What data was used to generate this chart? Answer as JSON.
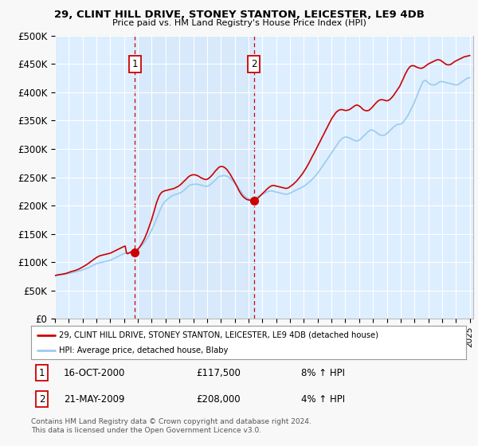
{
  "title": "29, CLINT HILL DRIVE, STONEY STANTON, LEICESTER, LE9 4DB",
  "subtitle": "Price paid vs. HM Land Registry's House Price Index (HPI)",
  "ylim": [
    0,
    500000
  ],
  "xlim_start": 1995.0,
  "xlim_end": 2025.25,
  "yticks": [
    0,
    50000,
    100000,
    150000,
    200000,
    250000,
    300000,
    350000,
    400000,
    450000,
    500000
  ],
  "ytick_labels": [
    "£0",
    "£50K",
    "£100K",
    "£150K",
    "£200K",
    "£250K",
    "£300K",
    "£350K",
    "£400K",
    "£450K",
    "£500K"
  ],
  "background_color": "#f8f8f8",
  "plot_bg_color": "#ddeeff",
  "grid_color": "#ffffff",
  "transaction1_year": 2000.79,
  "transaction1_price": 117500,
  "transaction2_year": 2009.38,
  "transaction2_price": 208000,
  "legend_line1": "29, CLINT HILL DRIVE, STONEY STANTON, LEICESTER, LE9 4DB (detached house)",
  "legend_line2": "HPI: Average price, detached house, Blaby",
  "footer_line1": "Contains HM Land Registry data © Crown copyright and database right 2024.",
  "footer_line2": "This data is licensed under the Open Government Licence v3.0.",
  "note1_date": "16-OCT-2000",
  "note1_price": "£117,500",
  "note1_hpi": "8% ↑ HPI",
  "note2_date": "21-MAY-2009",
  "note2_price": "£208,000",
  "note2_hpi": "4% ↑ HPI",
  "line_color_red": "#cc0000",
  "line_color_blue": "#99ccee",
  "marker_color_red": "#cc0000",
  "vline_color": "#cc0000",
  "hpi_years": [
    1995.0,
    1995.08,
    1995.17,
    1995.25,
    1995.33,
    1995.42,
    1995.5,
    1995.58,
    1995.67,
    1995.75,
    1995.83,
    1995.92,
    1996.0,
    1996.08,
    1996.17,
    1996.25,
    1996.33,
    1996.42,
    1996.5,
    1996.58,
    1996.67,
    1996.75,
    1996.83,
    1996.92,
    1997.0,
    1997.08,
    1997.17,
    1997.25,
    1997.33,
    1997.42,
    1997.5,
    1997.58,
    1997.67,
    1997.75,
    1997.83,
    1997.92,
    1998.0,
    1998.08,
    1998.17,
    1998.25,
    1998.33,
    1998.42,
    1998.5,
    1998.58,
    1998.67,
    1998.75,
    1998.83,
    1998.92,
    1999.0,
    1999.08,
    1999.17,
    1999.25,
    1999.33,
    1999.42,
    1999.5,
    1999.58,
    1999.67,
    1999.75,
    1999.83,
    1999.92,
    2000.0,
    2000.08,
    2000.17,
    2000.25,
    2000.33,
    2000.42,
    2000.5,
    2000.58,
    2000.67,
    2000.75,
    2000.83,
    2000.92,
    2001.0,
    2001.08,
    2001.17,
    2001.25,
    2001.33,
    2001.42,
    2001.5,
    2001.58,
    2001.67,
    2001.75,
    2001.83,
    2001.92,
    2002.0,
    2002.08,
    2002.17,
    2002.25,
    2002.33,
    2002.42,
    2002.5,
    2002.58,
    2002.67,
    2002.75,
    2002.83,
    2002.92,
    2003.0,
    2003.08,
    2003.17,
    2003.25,
    2003.33,
    2003.42,
    2003.5,
    2003.58,
    2003.67,
    2003.75,
    2003.83,
    2003.92,
    2004.0,
    2004.08,
    2004.17,
    2004.25,
    2004.33,
    2004.42,
    2004.5,
    2004.58,
    2004.67,
    2004.75,
    2004.83,
    2004.92,
    2005.0,
    2005.08,
    2005.17,
    2005.25,
    2005.33,
    2005.42,
    2005.5,
    2005.58,
    2005.67,
    2005.75,
    2005.83,
    2005.92,
    2006.0,
    2006.08,
    2006.17,
    2006.25,
    2006.33,
    2006.42,
    2006.5,
    2006.58,
    2006.67,
    2006.75,
    2006.83,
    2006.92,
    2007.0,
    2007.08,
    2007.17,
    2007.25,
    2007.33,
    2007.42,
    2007.5,
    2007.58,
    2007.67,
    2007.75,
    2007.83,
    2007.92,
    2008.0,
    2008.08,
    2008.17,
    2008.25,
    2008.33,
    2008.42,
    2008.5,
    2008.58,
    2008.67,
    2008.75,
    2008.83,
    2008.92,
    2009.0,
    2009.08,
    2009.17,
    2009.25,
    2009.33,
    2009.42,
    2009.5,
    2009.58,
    2009.67,
    2009.75,
    2009.83,
    2009.92,
    2010.0,
    2010.08,
    2010.17,
    2010.25,
    2010.33,
    2010.42,
    2010.5,
    2010.58,
    2010.67,
    2010.75,
    2010.83,
    2010.92,
    2011.0,
    2011.08,
    2011.17,
    2011.25,
    2011.33,
    2011.42,
    2011.5,
    2011.58,
    2011.67,
    2011.75,
    2011.83,
    2011.92,
    2012.0,
    2012.08,
    2012.17,
    2012.25,
    2012.33,
    2012.42,
    2012.5,
    2012.58,
    2012.67,
    2012.75,
    2012.83,
    2012.92,
    2013.0,
    2013.08,
    2013.17,
    2013.25,
    2013.33,
    2013.42,
    2013.5,
    2013.58,
    2013.67,
    2013.75,
    2013.83,
    2013.92,
    2014.0,
    2014.08,
    2014.17,
    2014.25,
    2014.33,
    2014.42,
    2014.5,
    2014.58,
    2014.67,
    2014.75,
    2014.83,
    2014.92,
    2015.0,
    2015.08,
    2015.17,
    2015.25,
    2015.33,
    2015.42,
    2015.5,
    2015.58,
    2015.67,
    2015.75,
    2015.83,
    2015.92,
    2016.0,
    2016.08,
    2016.17,
    2016.25,
    2016.33,
    2016.42,
    2016.5,
    2016.58,
    2016.67,
    2016.75,
    2016.83,
    2016.92,
    2017.0,
    2017.08,
    2017.17,
    2017.25,
    2017.33,
    2017.42,
    2017.5,
    2017.58,
    2017.67,
    2017.75,
    2017.83,
    2017.92,
    2018.0,
    2018.08,
    2018.17,
    2018.25,
    2018.33,
    2018.42,
    2018.5,
    2018.58,
    2018.67,
    2018.75,
    2018.83,
    2018.92,
    2019.0,
    2019.08,
    2019.17,
    2019.25,
    2019.33,
    2019.42,
    2019.5,
    2019.58,
    2019.67,
    2019.75,
    2019.83,
    2019.92,
    2020.0,
    2020.08,
    2020.17,
    2020.25,
    2020.33,
    2020.42,
    2020.5,
    2020.58,
    2020.67,
    2020.75,
    2020.83,
    2020.92,
    2021.0,
    2021.08,
    2021.17,
    2021.25,
    2021.33,
    2021.42,
    2021.5,
    2021.58,
    2021.67,
    2021.75,
    2021.83,
    2021.92,
    2022.0,
    2022.08,
    2022.17,
    2022.25,
    2022.33,
    2022.42,
    2022.5,
    2022.58,
    2022.67,
    2022.75,
    2022.83,
    2022.92,
    2023.0,
    2023.08,
    2023.17,
    2023.25,
    2023.33,
    2023.42,
    2023.5,
    2023.58,
    2023.67,
    2023.75,
    2023.83,
    2023.92,
    2024.0,
    2024.08,
    2024.17,
    2024.25,
    2024.33,
    2024.42,
    2024.5,
    2024.58,
    2024.67,
    2024.75,
    2024.83,
    2024.92,
    2025.0
  ],
  "hpi_values": [
    76000,
    76500,
    77000,
    77200,
    77500,
    77800,
    78000,
    78300,
    78600,
    79000,
    79400,
    79800,
    80200,
    80600,
    81000,
    81500,
    82000,
    82500,
    83000,
    83500,
    84000,
    84600,
    85200,
    85800,
    86500,
    87200,
    88000,
    88800,
    89600,
    90500,
    91500,
    92500,
    93500,
    94500,
    95500,
    96500,
    97500,
    98000,
    98500,
    99000,
    99500,
    100000,
    100500,
    101000,
    101500,
    102000,
    102500,
    103000,
    103500,
    104500,
    105500,
    106500,
    107500,
    108500,
    109500,
    110500,
    111500,
    112500,
    113500,
    114500,
    115500,
    116000,
    116500,
    117000,
    117500,
    118000,
    118500,
    119000,
    119500,
    120000,
    121000,
    122000,
    123500,
    125000,
    127000,
    129000,
    131000,
    133500,
    136000,
    139000,
    142000,
    145500,
    149000,
    153000,
    157000,
    161500,
    166000,
    171000,
    176000,
    181000,
    186000,
    191000,
    196000,
    200000,
    203000,
    206000,
    208000,
    210000,
    212000,
    213500,
    215000,
    216500,
    217500,
    218500,
    219500,
    220000,
    220500,
    221000,
    222000,
    223000,
    224000,
    225500,
    227000,
    229000,
    231000,
    233000,
    235000,
    236000,
    236500,
    237000,
    237500,
    237800,
    238000,
    237800,
    237500,
    237000,
    236500,
    236000,
    235500,
    235000,
    234500,
    234000,
    234000,
    235000,
    236000,
    237500,
    239000,
    241000,
    243000,
    245000,
    247000,
    249000,
    250500,
    251500,
    252000,
    252500,
    253000,
    253000,
    252500,
    252000,
    251000,
    249500,
    248000,
    246000,
    244000,
    242000,
    240000,
    237500,
    235000,
    232000,
    229000,
    226000,
    223000,
    220000,
    218000,
    216000,
    214500,
    213000,
    212000,
    211000,
    211000,
    211500,
    212000,
    213000,
    214000,
    215000,
    216000,
    217000,
    218000,
    219000,
    220000,
    221000,
    222000,
    223000,
    224000,
    225000,
    225500,
    226000,
    226000,
    225500,
    225000,
    224500,
    224000,
    223500,
    223000,
    222500,
    222000,
    221500,
    221000,
    220500,
    220000,
    220000,
    220500,
    221000,
    222000,
    223000,
    224000,
    225000,
    226000,
    227000,
    228000,
    229000,
    230000,
    231000,
    232000,
    233000,
    234000,
    235500,
    237000,
    238500,
    240000,
    242000,
    244000,
    246000,
    248000,
    250000,
    252500,
    255000,
    257500,
    260000,
    263000,
    266000,
    269000,
    272000,
    275000,
    278000,
    281000,
    284000,
    287000,
    290000,
    293000,
    296000,
    299000,
    302000,
    305000,
    308000,
    311000,
    314000,
    316000,
    318000,
    319500,
    320500,
    321000,
    321000,
    320500,
    320000,
    319000,
    318000,
    317000,
    316000,
    315000,
    314500,
    314000,
    314500,
    315500,
    317000,
    319000,
    321000,
    323000,
    325000,
    327000,
    329000,
    331000,
    332500,
    333500,
    333500,
    333000,
    332000,
    330500,
    329000,
    327500,
    326000,
    325000,
    324500,
    324000,
    324000,
    324500,
    325500,
    327000,
    329000,
    331000,
    333000,
    335000,
    337000,
    339000,
    340500,
    342000,
    343000,
    343500,
    343500,
    344000,
    345000,
    347000,
    349500,
    352000,
    355000,
    358000,
    362000,
    366000,
    370000,
    374000,
    378000,
    383000,
    388000,
    393000,
    398000,
    403000,
    408000,
    413000,
    417000,
    420000,
    421000,
    420500,
    419000,
    417000,
    415000,
    414000,
    413500,
    413000,
    413000,
    413500,
    414500,
    416000,
    417500,
    418500,
    419000,
    419000,
    418500,
    418000,
    417500,
    417000,
    416500,
    416000,
    415500,
    415000,
    414500,
    414000,
    413500,
    413000,
    413500,
    414000,
    415000,
    416500,
    418000,
    419500,
    421000,
    422500,
    424000,
    425000,
    425500,
    426000
  ],
  "red_values": [
    76500,
    77000,
    77500,
    77800,
    78000,
    78300,
    78600,
    79000,
    79500,
    80000,
    80600,
    81200,
    82000,
    82800,
    83500,
    84000,
    84500,
    85000,
    85700,
    86500,
    87300,
    88200,
    89200,
    90200,
    91500,
    92800,
    94000,
    95200,
    96500,
    98000,
    99500,
    101000,
    102500,
    104000,
    105500,
    107000,
    108500,
    109500,
    110500,
    111500,
    112000,
    112500,
    113000,
    113500,
    114000,
    114500,
    115000,
    115500,
    116000,
    117000,
    118000,
    119000,
    120000,
    121000,
    122000,
    123000,
    124000,
    125000,
    126000,
    127000,
    128000,
    128500,
    116500,
    115000,
    116000,
    117000,
    118000,
    118500,
    119000,
    117500,
    119500,
    121000,
    123000,
    125500,
    128500,
    131500,
    135000,
    139000,
    143000,
    148000,
    153000,
    158500,
    164000,
    170000,
    176000,
    183000,
    190000,
    197000,
    204000,
    210000,
    215000,
    219000,
    222000,
    224000,
    225000,
    226000,
    226500,
    227000,
    227500,
    228000,
    228500,
    229000,
    229500,
    230000,
    231000,
    232000,
    233000,
    234000,
    235500,
    237000,
    239000,
    241000,
    243000,
    245000,
    247000,
    249000,
    251000,
    252500,
    253500,
    254000,
    254500,
    254500,
    254000,
    253500,
    252500,
    251500,
    250000,
    249000,
    248000,
    247000,
    246500,
    246000,
    246500,
    247500,
    249000,
    251000,
    253000,
    255500,
    258000,
    260500,
    263000,
    265000,
    267000,
    268500,
    269000,
    269000,
    268500,
    267500,
    266000,
    264000,
    261500,
    258500,
    255500,
    252000,
    248500,
    245000,
    241500,
    237500,
    233500,
    229500,
    225500,
    222000,
    219000,
    216500,
    214500,
    213000,
    211500,
    210500,
    210000,
    209500,
    209500,
    208500,
    208000,
    208500,
    209500,
    211000,
    213000,
    215000,
    217000,
    219000,
    221000,
    223000,
    225000,
    227000,
    229000,
    231000,
    232500,
    234000,
    235000,
    235500,
    235500,
    235000,
    234500,
    234000,
    233500,
    233000,
    232500,
    232000,
    231500,
    231000,
    230500,
    230500,
    231000,
    232000,
    233500,
    235000,
    236500,
    238000,
    240000,
    242000,
    244000,
    246500,
    249000,
    251500,
    254000,
    257000,
    260000,
    263000,
    266500,
    270000,
    273500,
    277500,
    281500,
    285500,
    289500,
    293000,
    297000,
    301000,
    305000,
    309000,
    313000,
    317000,
    321000,
    325000,
    329000,
    333000,
    337000,
    341000,
    345000,
    349000,
    353000,
    356000,
    359000,
    362000,
    364500,
    366500,
    368000,
    369000,
    369500,
    369500,
    369000,
    368500,
    368000,
    368000,
    368500,
    369000,
    370000,
    371500,
    373000,
    374500,
    376000,
    377000,
    377500,
    377000,
    376000,
    374500,
    372500,
    370500,
    369000,
    368000,
    367500,
    367500,
    368000,
    369000,
    371000,
    373000,
    375000,
    377500,
    380000,
    382000,
    384000,
    385500,
    386500,
    387000,
    387000,
    386500,
    386000,
    385500,
    385000,
    385500,
    386500,
    388000,
    390000,
    392500,
    395000,
    398000,
    401000,
    404000,
    407000,
    410000,
    414000,
    418500,
    423000,
    427500,
    432000,
    436000,
    439500,
    442500,
    445000,
    446500,
    447000,
    447000,
    446500,
    445500,
    444500,
    443500,
    443000,
    442500,
    442500,
    443000,
    444000,
    445500,
    447000,
    448500,
    450000,
    451000,
    452000,
    453000,
    454000,
    455000,
    456000,
    457000,
    457500,
    457500,
    457000,
    456000,
    454500,
    453000,
    451500,
    450000,
    449000,
    448500,
    448500,
    449000,
    450000,
    451500,
    453000,
    454500,
    455500,
    456500,
    457500,
    458500,
    459500,
    460500,
    461500,
    462500,
    463000,
    463500,
    464000,
    464500,
    465000
  ]
}
